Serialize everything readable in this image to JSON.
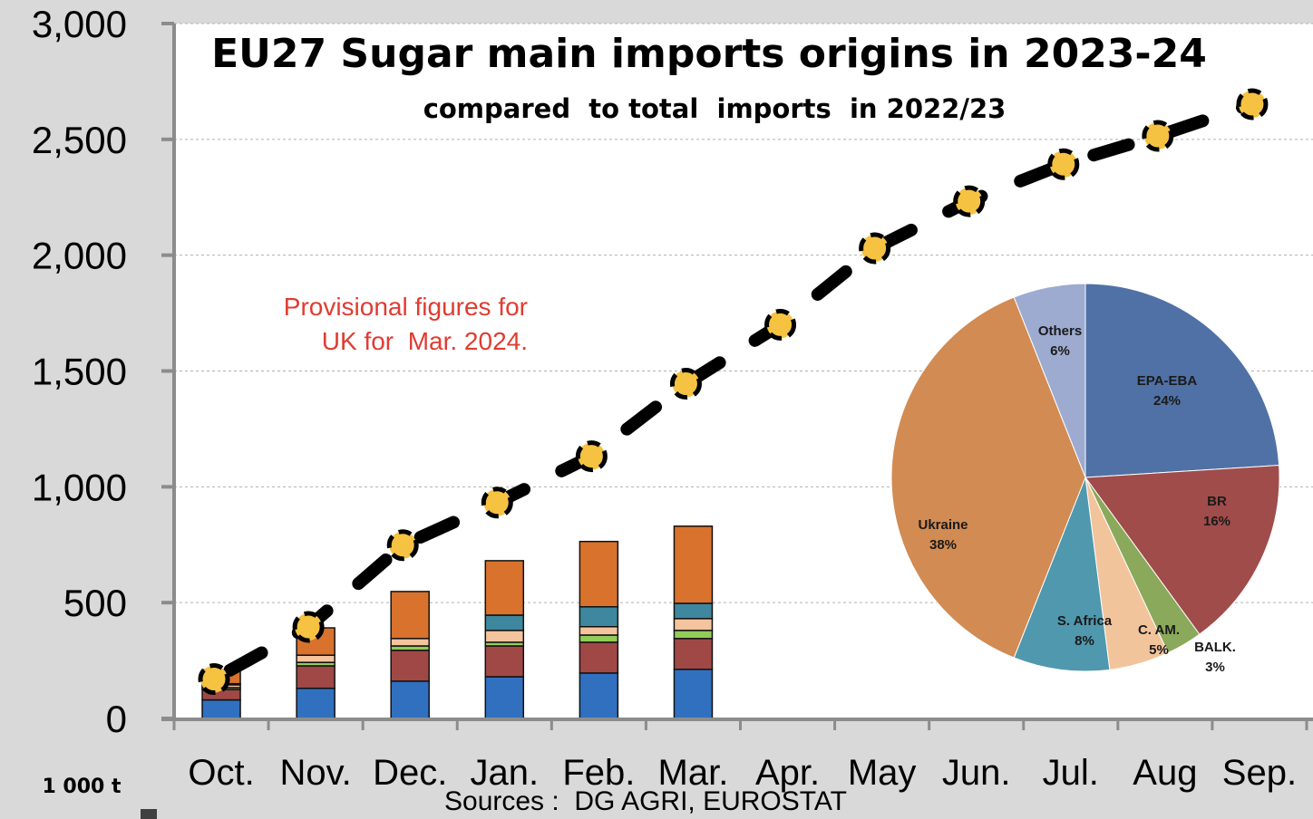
{
  "chart_data": [
    {
      "type": "bar",
      "title": "EU27 Sugar main imports origins in 2023-24",
      "subtitle": "compared  to total  imports  in 2022/23",
      "ylabel": "1 000 t",
      "ylim": [
        0,
        3000
      ],
      "yticks": [
        0,
        500,
        1000,
        1500,
        2000,
        2500,
        3000
      ],
      "ytick_labels": [
        "0",
        "500",
        "1,000",
        "1,500",
        "2,000",
        "2,500",
        "3,000"
      ],
      "grid": true,
      "categories": [
        "Oct.",
        "Nov.",
        "Dec.",
        "Jan.",
        "Feb.",
        "Mar.",
        "Apr.",
        "May",
        "Jun.",
        "Jul.",
        "Aug",
        "Sep."
      ],
      "stacked_series": [
        {
          "name": "EPA-EBA",
          "color": "#3070BF",
          "values": [
            80,
            130,
            161,
            180,
            196,
            212
          ]
        },
        {
          "name": "BR",
          "color": "#A04846",
          "values": [
            45,
            97,
            133,
            133,
            133,
            133
          ]
        },
        {
          "name": "BALK.",
          "color": "#92CC5A",
          "values": [
            8,
            15,
            19,
            16,
            31,
            35
          ]
        },
        {
          "name": "C. AM.",
          "color": "#F4C49E",
          "values": [
            12,
            31,
            32,
            51,
            36,
            51
          ]
        },
        {
          "name": "S. Africa",
          "color": "#3F879E",
          "values": [
            5,
            0,
            0,
            66,
            86,
            66
          ]
        },
        {
          "name": "Ukraine",
          "color": "#D9722C",
          "values": [
            60,
            118,
            203,
            235,
            282,
            333
          ]
        }
      ],
      "line_series": {
        "name": "Total imports 2022/23 (cumulative)",
        "color": "#000000",
        "marker_color": "#F5C242",
        "values": [
          170,
          395,
          748,
          932,
          1132,
          1445,
          1700,
          2030,
          2233,
          2393,
          2515,
          2652
        ]
      },
      "annotation": [
        "Provisional figures for",
        "UK for  Mar. 2024."
      ],
      "annotation_color": "#E03C31",
      "source": "Sources :  DG AGRI, EUROSTAT"
    },
    {
      "type": "pie",
      "slices": [
        {
          "label": "EPA-EBA",
          "value": 24,
          "pct_label": "24%",
          "color": "#4F71A5"
        },
        {
          "label": "BR",
          "value": 16,
          "pct_label": "16%",
          "color": "#A04C4A"
        },
        {
          "label": "BALK.",
          "value": 3,
          "pct_label": "3%",
          "color": "#8BA95A"
        },
        {
          "label": "C. AM.",
          "value": 5,
          "pct_label": "5%",
          "color": "#F2C49B"
        },
        {
          "label": "S. Africa",
          "value": 8,
          "pct_label": "8%",
          "color": "#4F98AE"
        },
        {
          "label": "Ukraine",
          "value": 38,
          "pct_label": "38%",
          "color": "#D28B52"
        },
        {
          "label": "Others",
          "value": 6,
          "pct_label": "6%",
          "color": "#9DABD1"
        }
      ]
    }
  ]
}
